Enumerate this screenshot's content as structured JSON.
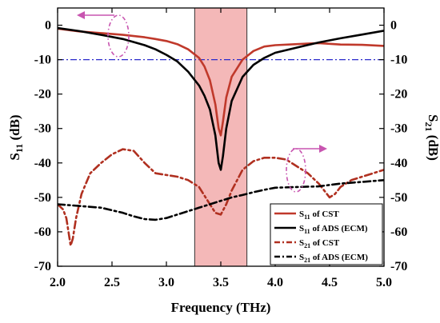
{
  "chart_data": {
    "type": "line",
    "xlabel": "Frequency (THz)",
    "ylabel_left": "S11 (dB)",
    "ylabel_right": "S21 (dB)",
    "xlim": [
      2.0,
      5.0
    ],
    "ylim": [
      -70,
      5
    ],
    "xticks": [
      "2.0",
      "2.5",
      "3.0",
      "3.5",
      "4.0",
      "4.5",
      "5.0"
    ],
    "yticks": [
      "0",
      "-10",
      "-20",
      "-30",
      "-40",
      "-50",
      "-60",
      "-70"
    ],
    "band": {
      "x_from": 3.26,
      "x_to": 3.74,
      "color": "#f4b8b8"
    },
    "reference_line": {
      "y": -10,
      "color": "#2a2acc"
    },
    "arrow_color": "#c855b0",
    "legend_position": "bottom-right",
    "series": [
      {
        "name": "S11 of CST",
        "color": "#c0392b",
        "style": "solid",
        "x": [
          2.0,
          2.2,
          2.4,
          2.6,
          2.8,
          2.9,
          3.0,
          3.1,
          3.2,
          3.3,
          3.35,
          3.4,
          3.45,
          3.48,
          3.5,
          3.52,
          3.55,
          3.6,
          3.7,
          3.8,
          3.9,
          4.0,
          4.2,
          4.4,
          4.6,
          4.8,
          5.0
        ],
        "y": [
          -1.0,
          -1.8,
          -2.3,
          -2.8,
          -3.5,
          -4.0,
          -4.6,
          -5.5,
          -7.0,
          -9.5,
          -12.0,
          -16.0,
          -23.0,
          -30.0,
          -32.0,
          -28.0,
          -21.0,
          -15.0,
          -10.0,
          -7.5,
          -6.2,
          -5.8,
          -5.5,
          -5.2,
          -5.6,
          -5.7,
          -6.0
        ]
      },
      {
        "name": "S11 of ADS (ECM)",
        "color": "#000000",
        "style": "solid",
        "x": [
          2.0,
          2.2,
          2.4,
          2.6,
          2.8,
          2.9,
          3.0,
          3.1,
          3.2,
          3.3,
          3.35,
          3.4,
          3.45,
          3.48,
          3.5,
          3.52,
          3.55,
          3.6,
          3.7,
          3.8,
          3.9,
          4.0,
          4.2,
          4.4,
          4.6,
          4.8,
          5.0
        ],
        "y": [
          -0.8,
          -1.7,
          -2.8,
          -4.0,
          -5.8,
          -7.0,
          -8.6,
          -10.5,
          -13.5,
          -17.5,
          -20.5,
          -24.5,
          -32.0,
          -40.0,
          -42.0,
          -38.0,
          -30.0,
          -22.0,
          -15.0,
          -11.5,
          -9.5,
          -8.0,
          -6.5,
          -5.0,
          -3.8,
          -2.7,
          -1.6
        ]
      },
      {
        "name": "S21 of CST",
        "color": "#b03020",
        "style": "dashdot",
        "x": [
          2.0,
          2.05,
          2.08,
          2.1,
          2.12,
          2.14,
          2.17,
          2.22,
          2.3,
          2.4,
          2.5,
          2.6,
          2.7,
          2.8,
          2.9,
          3.0,
          3.1,
          3.2,
          3.3,
          3.4,
          3.45,
          3.5,
          3.55,
          3.6,
          3.7,
          3.8,
          3.9,
          4.0,
          4.1,
          4.2,
          4.3,
          4.4,
          4.5,
          4.55,
          4.6,
          4.7,
          4.8,
          4.9,
          5.0
        ],
        "y": [
          -52.0,
          -53.5,
          -56.0,
          -60.0,
          -64.0,
          -62.0,
          -56.0,
          -49.0,
          -43.0,
          -40.0,
          -37.5,
          -36.0,
          -36.5,
          -40.0,
          -43.0,
          -43.5,
          -44.0,
          -45.0,
          -47.0,
          -52.0,
          -54.5,
          -55.0,
          -52.0,
          -48.0,
          -42.0,
          -39.5,
          -38.5,
          -38.5,
          -39.0,
          -41.0,
          -43.0,
          -46.0,
          -50.0,
          -49.0,
          -47.0,
          -45.0,
          -44.0,
          -43.0,
          -42.0
        ]
      },
      {
        "name": "S21 of ADS (ECM)",
        "color": "#000000",
        "style": "dashdot",
        "x": [
          2.0,
          2.2,
          2.4,
          2.6,
          2.7,
          2.8,
          2.9,
          3.0,
          3.1,
          3.2,
          3.3,
          3.4,
          3.5,
          3.6,
          3.7,
          3.8,
          3.9,
          4.0,
          4.2,
          4.4,
          4.6,
          4.8,
          5.0
        ],
        "y": [
          -52.0,
          -52.5,
          -53.0,
          -54.5,
          -55.5,
          -56.3,
          -56.5,
          -56.0,
          -55.0,
          -54.0,
          -53.0,
          -52.0,
          -51.0,
          -50.0,
          -49.3,
          -48.5,
          -47.8,
          -47.2,
          -47.0,
          -46.8,
          -46.0,
          -45.5,
          -45.0
        ]
      }
    ]
  }
}
